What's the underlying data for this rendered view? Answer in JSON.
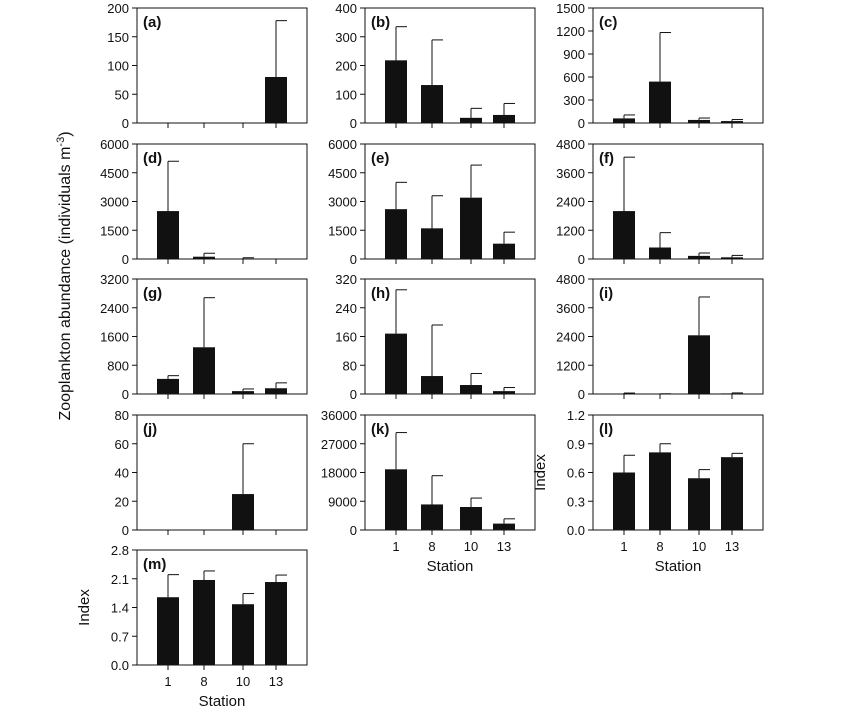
{
  "figure": {
    "ylabel_left_main": "Zooplankton abundance (individuals m",
    "ylabel_left_sup": "-3",
    "ylabel_left_close": ")"
  },
  "chart_data": [
    {
      "panel": "a",
      "label": "(a)",
      "type": "bar",
      "categories": [
        "1",
        "8",
        "10",
        "13"
      ],
      "values": [
        0,
        0,
        0,
        80
      ],
      "errors": [
        0,
        0,
        0,
        98
      ],
      "ylim": [
        0,
        200
      ],
      "yticks": [
        "0",
        "50",
        "100",
        "150",
        "200"
      ],
      "ylabel": "",
      "xlabel": "",
      "show_x_ticklabels": false
    },
    {
      "panel": "b",
      "label": "(b)",
      "type": "bar",
      "categories": [
        "1",
        "8",
        "10",
        "13"
      ],
      "values": [
        218,
        132,
        18,
        28
      ],
      "errors": [
        117,
        157,
        33,
        40
      ],
      "ylim": [
        0,
        400
      ],
      "yticks": [
        "0",
        "100",
        "200",
        "300",
        "400"
      ],
      "ylabel": "",
      "xlabel": "",
      "show_x_ticklabels": false
    },
    {
      "panel": "c",
      "label": "(c)",
      "type": "bar",
      "categories": [
        "1",
        "8",
        "10",
        "13"
      ],
      "values": [
        60,
        540,
        40,
        25
      ],
      "errors": [
        45,
        640,
        25,
        20
      ],
      "ylim": [
        0,
        1500
      ],
      "yticks": [
        "0",
        "300",
        "600",
        "900",
        "1200",
        "1500"
      ],
      "ylabel": "",
      "xlabel": "",
      "show_x_ticklabels": false
    },
    {
      "panel": "d",
      "label": "(d)",
      "type": "bar",
      "categories": [
        "1",
        "8",
        "10",
        "13"
      ],
      "values": [
        2500,
        120,
        25,
        0
      ],
      "errors": [
        2600,
        180,
        40,
        0
      ],
      "ylim": [
        0,
        6000
      ],
      "yticks": [
        "0",
        "1500",
        "3000",
        "4500",
        "6000"
      ],
      "ylabel": "",
      "xlabel": "",
      "show_x_ticklabels": false
    },
    {
      "panel": "e",
      "label": "(e)",
      "type": "bar",
      "categories": [
        "1",
        "8",
        "10",
        "13"
      ],
      "values": [
        2600,
        1600,
        3200,
        800
      ],
      "errors": [
        1400,
        1700,
        1700,
        600
      ],
      "ylim": [
        0,
        6000
      ],
      "yticks": [
        "0",
        "1500",
        "3000",
        "4500",
        "6000"
      ],
      "ylabel": "",
      "xlabel": "",
      "show_x_ticklabels": false
    },
    {
      "panel": "f",
      "label": "(f)",
      "type": "bar",
      "categories": [
        "1",
        "8",
        "10",
        "13"
      ],
      "values": [
        2000,
        480,
        130,
        70
      ],
      "errors": [
        2250,
        620,
        120,
        80
      ],
      "ylim": [
        0,
        4800
      ],
      "yticks": [
        "0",
        "1200",
        "2400",
        "3600",
        "4800"
      ],
      "ylabel": "",
      "xlabel": "",
      "show_x_ticklabels": false
    },
    {
      "panel": "g",
      "label": "(g)",
      "type": "bar",
      "categories": [
        "1",
        "8",
        "10",
        "13"
      ],
      "values": [
        420,
        1300,
        80,
        160
      ],
      "errors": [
        90,
        1380,
        60,
        150
      ],
      "ylim": [
        0,
        3200
      ],
      "yticks": [
        "0",
        "800",
        "1600",
        "2400",
        "3200"
      ],
      "ylabel": "",
      "xlabel": "",
      "show_x_ticklabels": false
    },
    {
      "panel": "h",
      "label": "(h)",
      "type": "bar",
      "categories": [
        "1",
        "8",
        "10",
        "13"
      ],
      "values": [
        168,
        50,
        25,
        8
      ],
      "errors": [
        122,
        142,
        32,
        10
      ],
      "ylim": [
        0,
        320
      ],
      "yticks": [
        "0",
        "80",
        "160",
        "240",
        "320"
      ],
      "ylabel": "",
      "xlabel": "",
      "show_x_ticklabels": false
    },
    {
      "panel": "i",
      "label": "(i)",
      "type": "bar",
      "categories": [
        "1",
        "8",
        "10",
        "13"
      ],
      "values": [
        20,
        5,
        2450,
        25
      ],
      "errors": [
        20,
        5,
        1600,
        20
      ],
      "ylim": [
        0,
        4800
      ],
      "yticks": [
        "0",
        "1200",
        "2400",
        "3600",
        "4800"
      ],
      "ylabel": "",
      "xlabel": "",
      "show_x_ticklabels": false
    },
    {
      "panel": "j",
      "label": "(j)",
      "type": "bar",
      "categories": [
        "1",
        "8",
        "10",
        "13"
      ],
      "values": [
        0,
        0,
        25,
        0
      ],
      "errors": [
        0,
        0,
        35,
        0
      ],
      "ylim": [
        0,
        80
      ],
      "yticks": [
        "0",
        "20",
        "40",
        "60",
        "80"
      ],
      "ylabel": "",
      "xlabel": "",
      "show_x_ticklabels": false
    },
    {
      "panel": "k",
      "label": "(k)",
      "type": "bar",
      "categories": [
        "1",
        "8",
        "10",
        "13"
      ],
      "values": [
        19000,
        8000,
        7200,
        2000
      ],
      "errors": [
        11500,
        9000,
        2800,
        1500
      ],
      "ylim": [
        0,
        36000
      ],
      "yticks": [
        "0",
        "9000",
        "18000",
        "27000",
        "36000"
      ],
      "ylabel": "",
      "xlabel": "Station",
      "show_x_ticklabels": true
    },
    {
      "panel": "l",
      "label": "(l)",
      "type": "bar",
      "categories": [
        "1",
        "8",
        "10",
        "13"
      ],
      "values": [
        0.6,
        0.81,
        0.54,
        0.76
      ],
      "errors": [
        0.18,
        0.09,
        0.09,
        0.04
      ],
      "ylim": [
        0,
        1.2
      ],
      "yticks": [
        "0.0",
        "0.3",
        "0.6",
        "0.9",
        "1.2"
      ],
      "ylabel": "Index",
      "xlabel": "Station",
      "show_x_ticklabels": true
    },
    {
      "panel": "m",
      "label": "(m)",
      "type": "bar",
      "categories": [
        "1",
        "8",
        "10",
        "13"
      ],
      "values": [
        1.65,
        2.07,
        1.48,
        2.02
      ],
      "errors": [
        0.55,
        0.22,
        0.26,
        0.17
      ],
      "ylim": [
        0,
        2.8
      ],
      "yticks": [
        "0.0",
        "0.7",
        "1.4",
        "2.1",
        "2.8"
      ],
      "ylabel": "Index",
      "xlabel": "Station",
      "show_x_ticklabels": true
    }
  ]
}
